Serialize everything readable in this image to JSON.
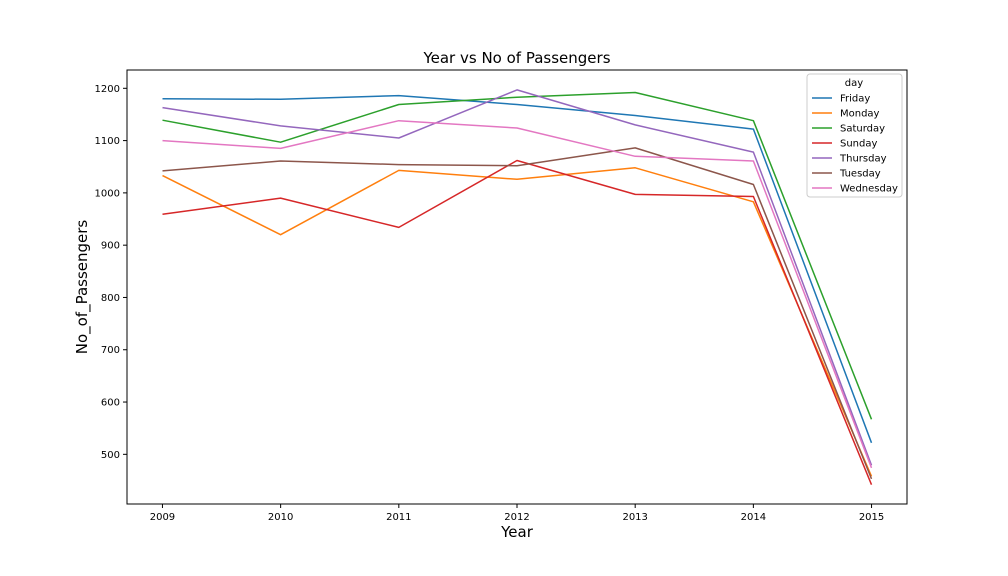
{
  "chart_data": {
    "type": "line",
    "title": "Year vs No of Passengers",
    "xlabel": "Year",
    "ylabel": "No_of_Passengers",
    "x": [
      2009,
      2010,
      2011,
      2012,
      2013,
      2014,
      2015
    ],
    "x_tick_labels": [
      "2009",
      "2010",
      "2011",
      "2012",
      "2013",
      "2014",
      "2015"
    ],
    "xlim": [
      2008.7,
      2015.3
    ],
    "ylim": [
      405,
      1235
    ],
    "yticks": [
      500,
      600,
      700,
      800,
      900,
      1000,
      1100,
      1200
    ],
    "y_tick_labels": [
      "500",
      "600",
      "700",
      "800",
      "900",
      "1000",
      "1100",
      "1200"
    ],
    "grid": false,
    "legend": {
      "title": "day",
      "placement": "top-right"
    },
    "series": [
      {
        "name": "Friday",
        "color": "#1f77b4",
        "values": [
          1180,
          1179,
          1186,
          1169,
          1148,
          1122,
          522
        ]
      },
      {
        "name": "Monday",
        "color": "#ff7f0e",
        "values": [
          1033,
          920,
          1043,
          1026,
          1048,
          983,
          458
        ]
      },
      {
        "name": "Saturday",
        "color": "#2ca02c",
        "values": [
          1139,
          1097,
          1169,
          1183,
          1192,
          1138,
          567
        ]
      },
      {
        "name": "Sunday",
        "color": "#d62728",
        "values": [
          959,
          990,
          934,
          1062,
          997,
          993,
          442
        ]
      },
      {
        "name": "Thursday",
        "color": "#9467bd",
        "values": [
          1163,
          1128,
          1105,
          1197,
          1130,
          1078,
          479
        ]
      },
      {
        "name": "Tuesday",
        "color": "#8c564b",
        "values": [
          1042,
          1061,
          1054,
          1052,
          1086,
          1016,
          453
        ]
      },
      {
        "name": "Wednesday",
        "color": "#e377c2",
        "values": [
          1100,
          1085,
          1138,
          1124,
          1070,
          1061,
          474
        ]
      }
    ]
  }
}
